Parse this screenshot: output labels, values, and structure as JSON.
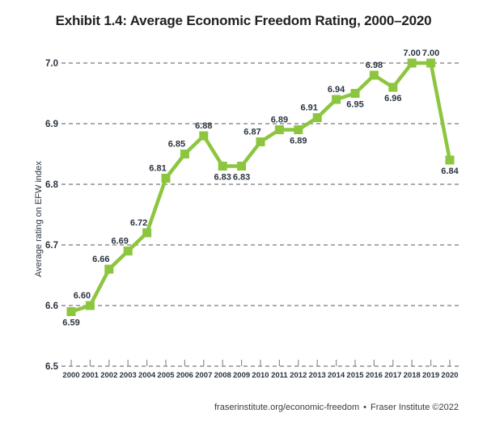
{
  "chart_data": {
    "type": "line",
    "title": "Exhibit 1.4: Average Economic Freedom Rating, 2000–2020",
    "ylabel": "Average rating on EFW index",
    "xlabel": "",
    "categories": [
      "2000",
      "2001",
      "2002",
      "2003",
      "2004",
      "2005",
      "2006",
      "2007",
      "2008",
      "2009",
      "2010",
      "2011",
      "2012",
      "2013",
      "2014",
      "2015",
      "2016",
      "2017",
      "2018",
      "2019",
      "2020"
    ],
    "series": [
      {
        "name": "Average rating on EFW index",
        "values": [
          6.59,
          6.6,
          6.66,
          6.69,
          6.72,
          6.81,
          6.85,
          6.88,
          6.83,
          6.83,
          6.87,
          6.89,
          6.89,
          6.91,
          6.94,
          6.95,
          6.98,
          6.96,
          7.0,
          7.0,
          6.84
        ],
        "point_labels": [
          "6.59",
          "6.60",
          "6.66",
          "6.69",
          "6.72",
          "6.81",
          "6.85",
          "6.88",
          "6.83",
          "6.83",
          "6.87",
          "6.89",
          "6.89",
          "6.91",
          "6.94",
          "6.95",
          "6.98",
          "6.96",
          "7.00",
          "7.00",
          "6.84"
        ],
        "label_positions": [
          "below",
          "above-left",
          "above-left",
          "above-left",
          "above-left",
          "above-left",
          "above-left",
          "above",
          "below",
          "below",
          "above-left",
          "above",
          "below",
          "above-left",
          "above",
          "below",
          "above",
          "below",
          "above",
          "above",
          "below"
        ]
      }
    ],
    "ylim": [
      6.5,
      7.0
    ],
    "yticks": [
      "7.0",
      "6.9",
      "6.8",
      "6.7",
      "6.6",
      "6.5"
    ],
    "grid": "horizontal-dashed",
    "legend": "none",
    "marker": "square",
    "colors": {
      "line": "#8cc63f",
      "marker": "#8cc63f",
      "grid": "#8f8f8f",
      "point_label": "#2b3440",
      "axis_text": "#2b3440",
      "title": "#231f20",
      "footer": "#3b3b3b"
    }
  },
  "footer": {
    "url": "fraserinstitute.org/economic-freedom",
    "separator": "•",
    "credit": "Fraser Institute ©2022"
  }
}
